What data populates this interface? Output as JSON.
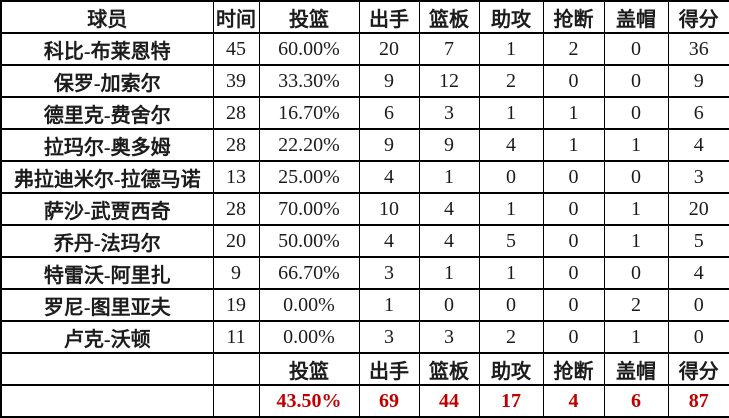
{
  "table": {
    "columns": [
      "name",
      "time",
      "fg_pct",
      "fga",
      "reb",
      "ast",
      "stl",
      "blk",
      "pts"
    ],
    "header": {
      "name": "球员",
      "time": "时间",
      "fg_pct": "投篮",
      "fga": "出手",
      "reb": "篮板",
      "ast": "助攻",
      "stl": "抢断",
      "blk": "盖帽",
      "pts": "得分"
    },
    "players": [
      {
        "name": "科比-布莱恩特",
        "time": "45",
        "fg_pct": "60.00%",
        "fga": "20",
        "reb": "7",
        "ast": "1",
        "stl": "2",
        "blk": "0",
        "pts": "36"
      },
      {
        "name": "保罗-加索尔",
        "time": "39",
        "fg_pct": "33.30%",
        "fga": "9",
        "reb": "12",
        "ast": "2",
        "stl": "0",
        "blk": "0",
        "pts": "9"
      },
      {
        "name": "德里克-费舍尔",
        "time": "28",
        "fg_pct": "16.70%",
        "fga": "6",
        "reb": "3",
        "ast": "1",
        "stl": "1",
        "blk": "0",
        "pts": "6"
      },
      {
        "name": "拉玛尔-奥多姆",
        "time": "28",
        "fg_pct": "22.20%",
        "fga": "9",
        "reb": "9",
        "ast": "4",
        "stl": "1",
        "blk": "1",
        "pts": "4"
      },
      {
        "name": "弗拉迪米尔-拉德马诺",
        "time": "13",
        "fg_pct": "25.00%",
        "fga": "4",
        "reb": "1",
        "ast": "0",
        "stl": "0",
        "blk": "0",
        "pts": "3"
      },
      {
        "name": "萨沙-武贾西奇",
        "time": "28",
        "fg_pct": "70.00%",
        "fga": "10",
        "reb": "4",
        "ast": "1",
        "stl": "0",
        "blk": "1",
        "pts": "20"
      },
      {
        "name": "乔丹-法玛尔",
        "time": "20",
        "fg_pct": "50.00%",
        "fga": "4",
        "reb": "4",
        "ast": "5",
        "stl": "0",
        "blk": "1",
        "pts": "5"
      },
      {
        "name": "特雷沃-阿里扎",
        "time": "9",
        "fg_pct": "66.70%",
        "fga": "3",
        "reb": "1",
        "ast": "1",
        "stl": "0",
        "blk": "0",
        "pts": "4"
      },
      {
        "name": "罗尼-图里亚夫",
        "time": "19",
        "fg_pct": "0.00%",
        "fga": "1",
        "reb": "0",
        "ast": "0",
        "stl": "0",
        "blk": "2",
        "pts": "0"
      },
      {
        "name": "卢克-沃顿",
        "time": "11",
        "fg_pct": "0.00%",
        "fga": "3",
        "reb": "3",
        "ast": "2",
        "stl": "0",
        "blk": "1",
        "pts": "0"
      }
    ],
    "footer_header": {
      "fg_pct": "投篮",
      "fga": "出手",
      "reb": "篮板",
      "ast": "助攻",
      "stl": "抢断",
      "blk": "盖帽",
      "pts": "得分"
    },
    "totals": {
      "fg_pct": "43.50%",
      "fga": "69",
      "reb": "44",
      "ast": "17",
      "stl": "4",
      "blk": "6",
      "pts": "87"
    }
  },
  "chart_data": {
    "type": "table",
    "title": "",
    "columns": [
      "球员",
      "时间",
      "投篮",
      "出手",
      "篮板",
      "助攻",
      "抢断",
      "盖帽",
      "得分"
    ],
    "rows": [
      [
        "科比-布莱恩特",
        45,
        "60.00%",
        20,
        7,
        1,
        2,
        0,
        36
      ],
      [
        "保罗-加索尔",
        39,
        "33.30%",
        9,
        12,
        2,
        0,
        0,
        9
      ],
      [
        "德里克-费舍尔",
        28,
        "16.70%",
        6,
        3,
        1,
        1,
        0,
        6
      ],
      [
        "拉玛尔-奥多姆",
        28,
        "22.20%",
        9,
        9,
        4,
        1,
        1,
        4
      ],
      [
        "弗拉迪米尔-拉德马诺",
        13,
        "25.00%",
        4,
        1,
        0,
        0,
        0,
        3
      ],
      [
        "萨沙-武贾西奇",
        28,
        "70.00%",
        10,
        4,
        1,
        0,
        1,
        20
      ],
      [
        "乔丹-法玛尔",
        20,
        "50.00%",
        4,
        4,
        5,
        0,
        1,
        5
      ],
      [
        "特雷沃-阿里扎",
        9,
        "66.70%",
        3,
        1,
        1,
        0,
        0,
        4
      ],
      [
        "罗尼-图里亚夫",
        19,
        "0.00%",
        1,
        0,
        0,
        0,
        2,
        0
      ],
      [
        "卢克-沃顿",
        11,
        "0.00%",
        3,
        3,
        2,
        0,
        1,
        0
      ]
    ],
    "totals_row": [
      "",
      "",
      "43.50%",
      69,
      44,
      17,
      4,
      6,
      87
    ]
  },
  "colors": {
    "totals_text": "#c00000",
    "text": "#1c1c1c",
    "border": "#000000",
    "background": "#ffffff"
  }
}
